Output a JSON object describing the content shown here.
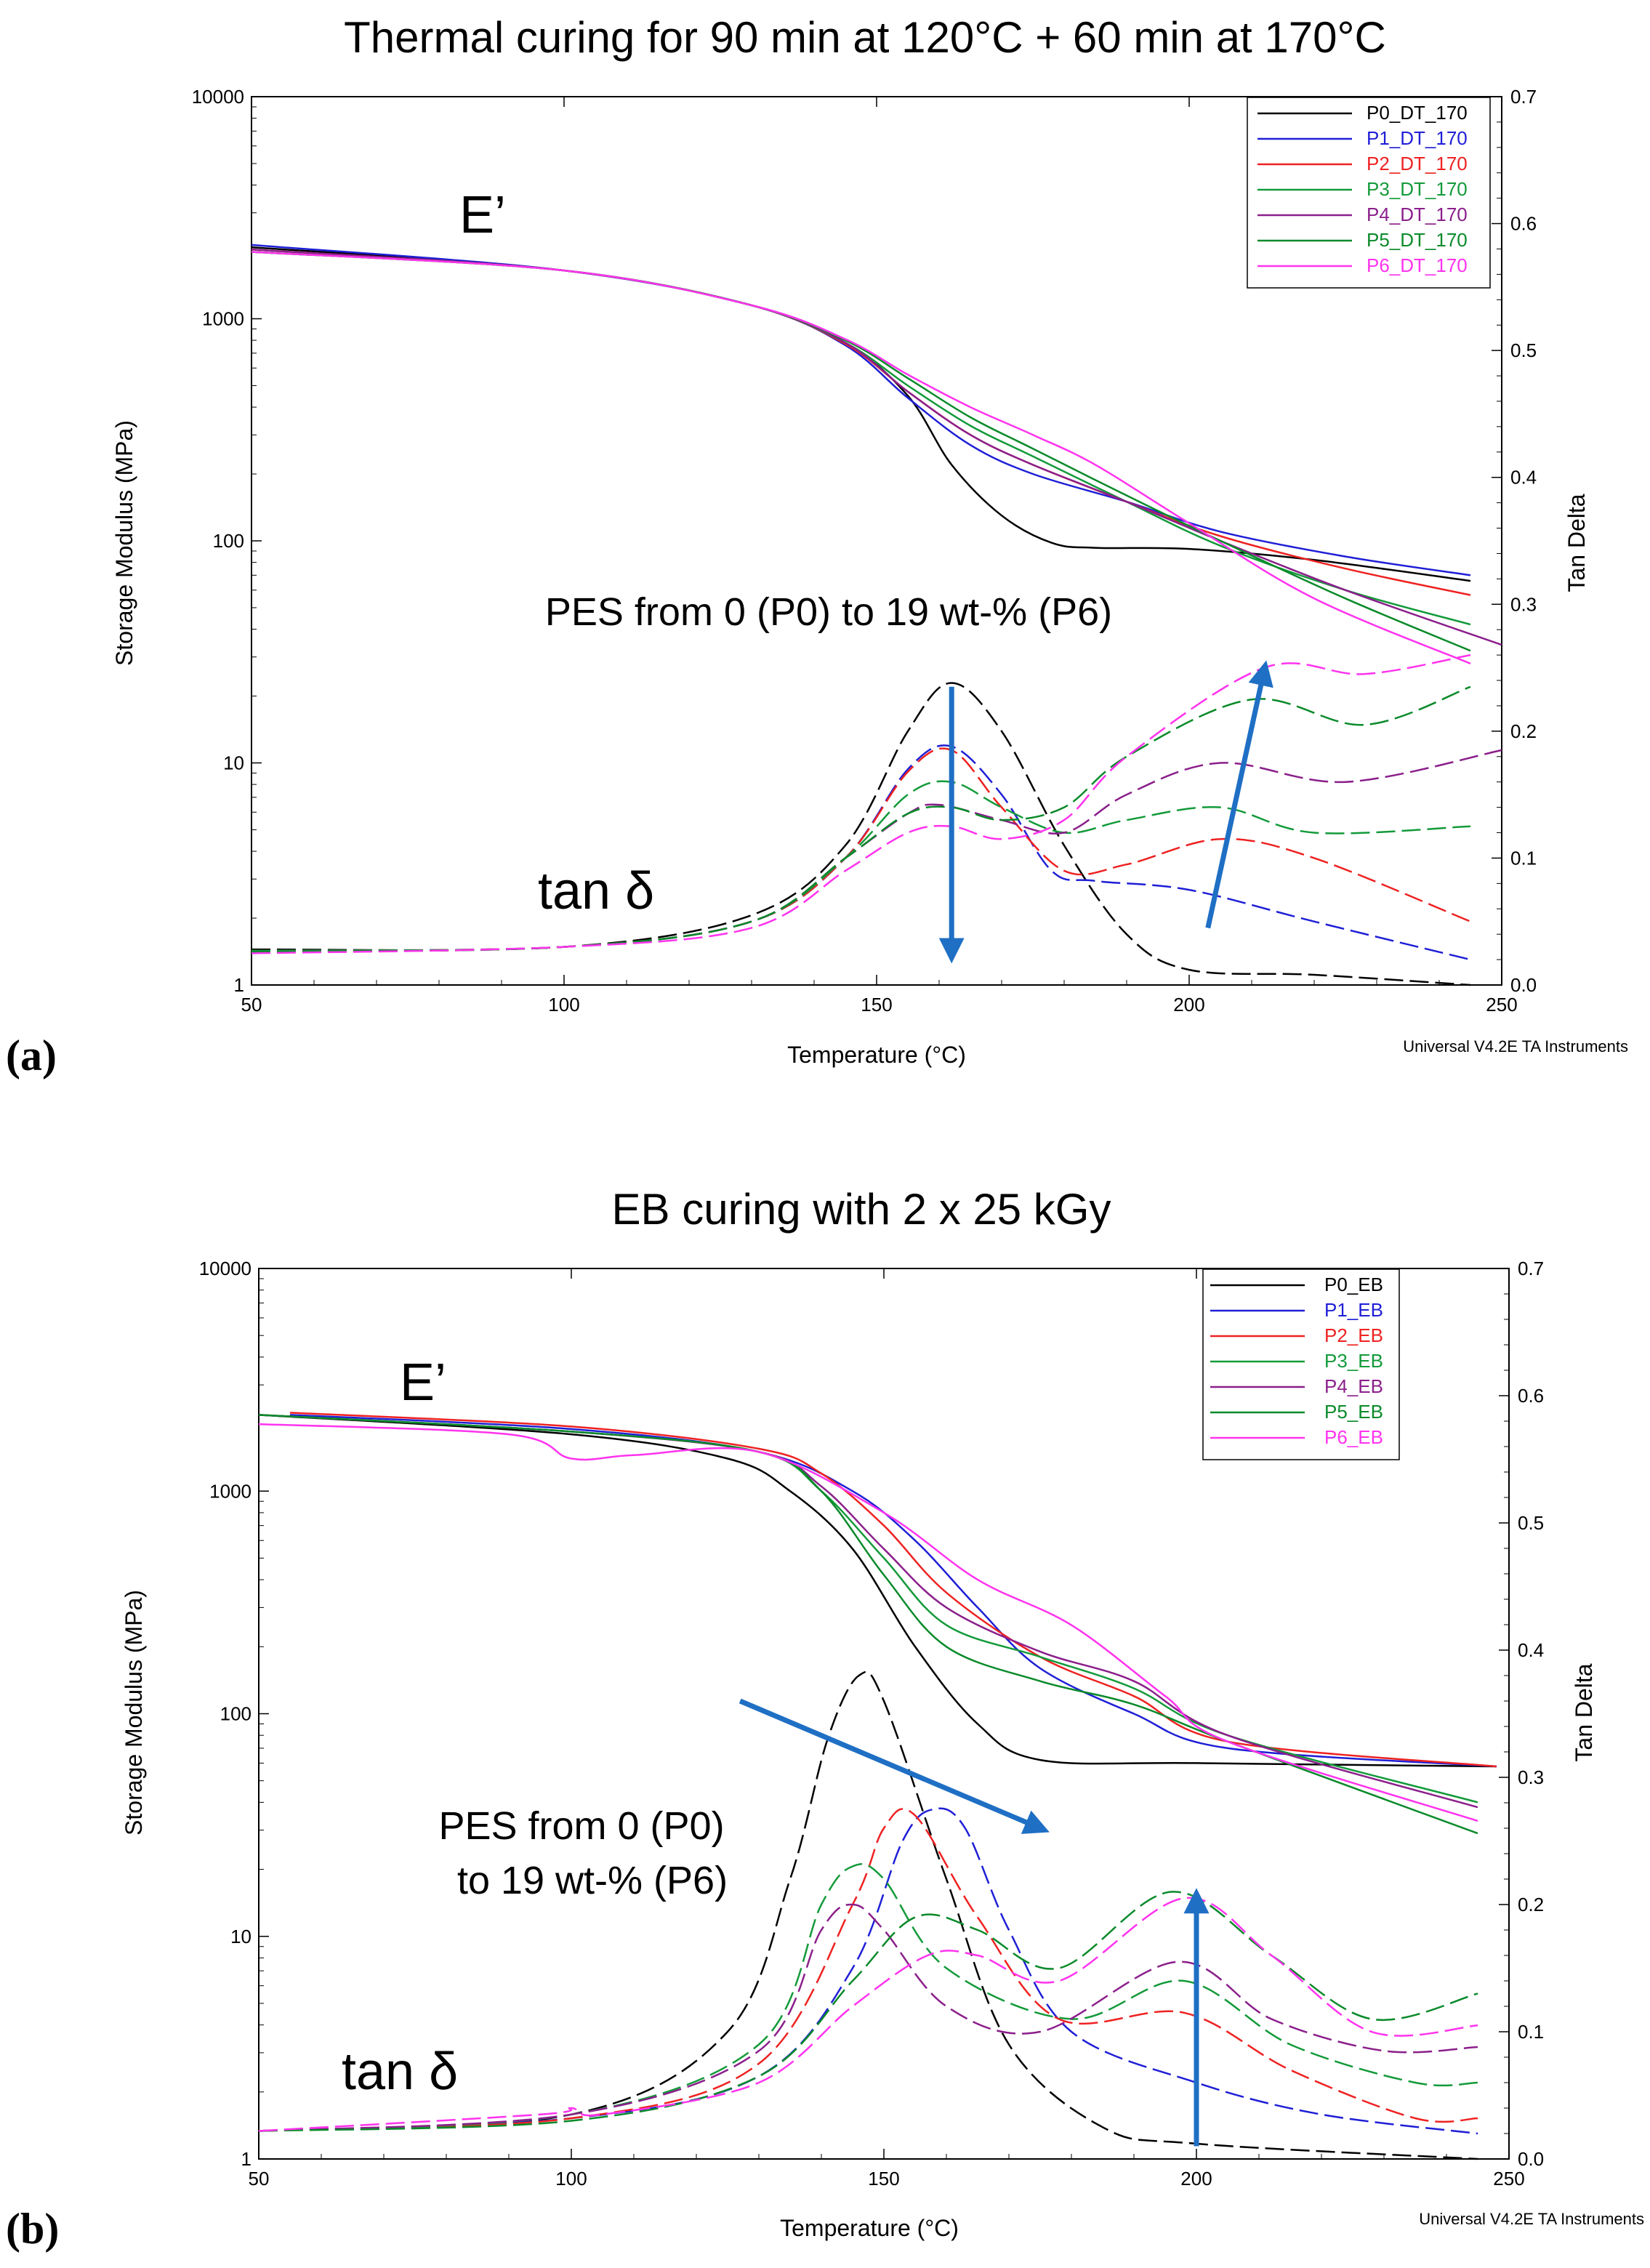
{
  "colors": {
    "P0": "#000000",
    "P1": "#1f1fd6",
    "P2": "#ee2222",
    "P3": "#139a3a",
    "P4": "#8b1f8b",
    "P5": "#0a8a2a",
    "P6": "#ff33ee",
    "arrow": "#1f6fc4"
  },
  "chart_data": [
    {
      "panel_label": "(a)",
      "type": "line",
      "title": "Thermal curing for 90 min at 120°C + 60 min at 170°C",
      "xlabel": "Temperature (°C)",
      "ylabel_left": "Storage Modulus (MPa)",
      "ylabel_right": "Tan Delta",
      "xlim": [
        50,
        250
      ],
      "ylim_left": [
        1,
        10000
      ],
      "ylim_right": [
        0,
        0.7
      ],
      "x_ticks": [
        "50",
        "100",
        "150",
        "200",
        "250"
      ],
      "y_left_ticks": [
        "1",
        "10",
        "100",
        "1000",
        "10000"
      ],
      "y_right_ticks": [
        "0.0",
        "0.1",
        "0.2",
        "0.3",
        "0.4",
        "0.5",
        "0.6",
        "0.7"
      ],
      "footer": "Universal V4.2E TA Instruments",
      "legend_position": "top-right",
      "curve_labels": {
        "modulus": "E’",
        "tan": "tan δ"
      },
      "annotation": [
        "PES from 0 (P0) to 19 wt-% (P6)"
      ],
      "modulus_series": [
        {
          "name": "P0_DT_170",
          "key": "P0",
          "x": [
            50,
            100,
            130,
            145,
            155,
            162,
            170,
            178,
            185,
            200,
            220,
            245
          ],
          "y": [
            2100,
            1650,
            1150,
            780,
            450,
            220,
            130,
            98,
            93,
            92,
            82,
            66
          ]
        },
        {
          "name": "P1_DT_170",
          "key": "P1",
          "x": [
            50,
            100,
            130,
            145,
            155,
            165,
            175,
            190,
            205,
            225,
            245
          ],
          "y": [
            2150,
            1650,
            1150,
            760,
            440,
            270,
            200,
            150,
            110,
            85,
            70
          ]
        },
        {
          "name": "P2_DT_170",
          "key": "P2",
          "x": [
            50,
            100,
            130,
            145,
            155,
            165,
            175,
            190,
            205,
            225,
            245
          ],
          "y": [
            2050,
            1650,
            1150,
            770,
            470,
            300,
            220,
            150,
            105,
            75,
            57
          ]
        },
        {
          "name": "P3_DT_170",
          "key": "P3",
          "x": [
            50,
            100,
            130,
            145,
            155,
            165,
            175,
            190,
            205,
            225,
            245
          ],
          "y": [
            2000,
            1650,
            1150,
            780,
            500,
            330,
            240,
            150,
            95,
            60,
            42
          ]
        },
        {
          "name": "P4_DT_170",
          "key": "P4",
          "x": [
            50,
            100,
            130,
            145,
            155,
            165,
            175,
            190,
            205,
            225,
            250
          ],
          "y": [
            2050,
            1650,
            1150,
            780,
            470,
            300,
            220,
            150,
            100,
            60,
            34
          ]
        },
        {
          "name": "P5_DT_170",
          "key": "P5",
          "x": [
            50,
            100,
            130,
            145,
            155,
            165,
            175,
            190,
            205,
            225,
            245
          ],
          "y": [
            2000,
            1650,
            1150,
            800,
            540,
            360,
            260,
            160,
            100,
            55,
            32
          ]
        },
        {
          "name": "P6_DT_170",
          "key": "P6",
          "x": [
            50,
            100,
            130,
            145,
            155,
            165,
            175,
            185,
            200,
            220,
            245
          ],
          "y": [
            2000,
            1650,
            1150,
            810,
            560,
            400,
            300,
            220,
            120,
            55,
            28
          ]
        }
      ],
      "tan_series": [
        {
          "name": "P0_DT_170",
          "key": "P0",
          "x": [
            50,
            100,
            130,
            145,
            155,
            162,
            170,
            180,
            190,
            200,
            220,
            245
          ],
          "y": [
            0.028,
            0.03,
            0.055,
            0.11,
            0.2,
            0.238,
            0.2,
            0.11,
            0.04,
            0.012,
            0.008,
            0.0
          ]
        },
        {
          "name": "P1_DT_170",
          "key": "P1",
          "x": [
            50,
            100,
            130,
            145,
            155,
            162,
            170,
            178,
            185,
            200,
            220,
            245
          ],
          "y": [
            0.027,
            0.03,
            0.05,
            0.1,
            0.17,
            0.188,
            0.15,
            0.09,
            0.082,
            0.075,
            0.05,
            0.02
          ]
        },
        {
          "name": "P2_DT_170",
          "key": "P2",
          "x": [
            50,
            100,
            130,
            145,
            155,
            162,
            170,
            180,
            190,
            205,
            220,
            245
          ],
          "y": [
            0.027,
            0.03,
            0.05,
            0.1,
            0.168,
            0.185,
            0.14,
            0.09,
            0.095,
            0.115,
            0.1,
            0.05
          ]
        },
        {
          "name": "P3_DT_170",
          "key": "P3",
          "x": [
            50,
            100,
            130,
            145,
            155,
            162,
            170,
            180,
            190,
            205,
            220,
            245
          ],
          "y": [
            0.027,
            0.03,
            0.05,
            0.1,
            0.15,
            0.16,
            0.14,
            0.12,
            0.13,
            0.14,
            0.12,
            0.125
          ]
        },
        {
          "name": "P4_DT_170",
          "key": "P4",
          "x": [
            50,
            100,
            130,
            145,
            155,
            160,
            170,
            180,
            190,
            205,
            225,
            250
          ],
          "y": [
            0.026,
            0.03,
            0.05,
            0.1,
            0.135,
            0.142,
            0.13,
            0.12,
            0.15,
            0.175,
            0.16,
            0.185
          ]
        },
        {
          "name": "P5_DT_170",
          "key": "P5",
          "x": [
            50,
            100,
            130,
            145,
            155,
            162,
            170,
            180,
            190,
            210,
            228,
            245
          ],
          "y": [
            0.026,
            0.03,
            0.05,
            0.1,
            0.135,
            0.14,
            0.13,
            0.14,
            0.18,
            0.225,
            0.205,
            0.235
          ]
        },
        {
          "name": "P6_DT_170",
          "key": "P6",
          "x": [
            50,
            100,
            130,
            145,
            155,
            162,
            170,
            180,
            190,
            212,
            228,
            245
          ],
          "y": [
            0.025,
            0.03,
            0.045,
            0.09,
            0.12,
            0.125,
            0.115,
            0.13,
            0.18,
            0.25,
            0.245,
            0.26
          ]
        }
      ],
      "arrows": [
        {
          "x1": 162,
          "y1": 0.235,
          "x2": 162,
          "y2": 0.025
        },
        {
          "x1": 203,
          "y1": 0.045,
          "x2": 212,
          "y2": 0.248
        }
      ]
    },
    {
      "panel_label": "(b)",
      "type": "line",
      "title": "EB curing with 2 x 25  kGy",
      "xlabel": "Temperature (°C)",
      "ylabel_left": "Storage Modulus (MPa)",
      "ylabel_right": "Tan Delta",
      "xlim": [
        50,
        250
      ],
      "ylim_left": [
        1,
        10000
      ],
      "ylim_right": [
        0,
        0.7
      ],
      "x_ticks": [
        "50",
        "100",
        "150",
        "200",
        "250"
      ],
      "y_left_ticks": [
        "1",
        "10",
        "100",
        "1000",
        "10000"
      ],
      "y_right_ticks": [
        "0.0",
        "0.1",
        "0.2",
        "0.3",
        "0.4",
        "0.5",
        "0.6",
        "0.7"
      ],
      "footer": "Universal V4.2E TA Instruments",
      "legend_position": "top-right",
      "curve_labels": {
        "modulus": "E’",
        "tan": "tan δ"
      },
      "annotation": [
        "PES from 0 (P0)",
        "to 19 wt-% (P6)"
      ],
      "modulus_series": [
        {
          "name": "P0_EB",
          "key": "P0",
          "x": [
            50,
            100,
            125,
            135,
            145,
            155,
            165,
            175,
            200,
            248
          ],
          "y": [
            2200,
            1800,
            1400,
            1000,
            550,
            200,
            90,
            62,
            60,
            58
          ]
        },
        {
          "name": "P1_EB",
          "key": "P1",
          "x": [
            55,
            100,
            130,
            145,
            155,
            165,
            175,
            190,
            205,
            248
          ],
          "y": [
            2200,
            1900,
            1500,
            1000,
            600,
            300,
            160,
            100,
            70,
            58
          ]
        },
        {
          "name": "P2_EB",
          "key": "P2",
          "x": [
            55,
            100,
            130,
            140,
            150,
            160,
            175,
            190,
            205,
            248
          ],
          "y": [
            2250,
            1950,
            1550,
            1200,
            700,
            350,
            180,
            120,
            75,
            58
          ]
        },
        {
          "name": "P3_EB",
          "key": "P3",
          "x": [
            50,
            100,
            130,
            140,
            150,
            160,
            175,
            190,
            205,
            245
          ],
          "y": [
            2200,
            1850,
            1500,
            1000,
            500,
            250,
            180,
            130,
            80,
            40
          ]
        },
        {
          "name": "P4_EB",
          "key": "P4",
          "x": [
            50,
            100,
            130,
            140,
            150,
            160,
            175,
            190,
            205,
            245
          ],
          "y": [
            2200,
            1850,
            1500,
            1050,
            550,
            300,
            190,
            140,
            80,
            38
          ]
        },
        {
          "name": "P5_EB",
          "key": "P5",
          "x": [
            50,
            100,
            130,
            140,
            150,
            160,
            175,
            190,
            205,
            245
          ],
          "y": [
            2200,
            1850,
            1500,
            1000,
            420,
            200,
            140,
            110,
            75,
            29
          ]
        },
        {
          "name": "P6_EB",
          "key": "P6",
          "x": [
            50,
            90,
            100,
            110,
            130,
            150,
            165,
            180,
            195,
            205,
            245
          ],
          "y": [
            2000,
            1800,
            1400,
            1450,
            1500,
            800,
            400,
            250,
            120,
            75,
            33
          ]
        }
      ],
      "tan_series": [
        {
          "name": "P0_EB",
          "key": "P0",
          "x": [
            50,
            100,
            125,
            135,
            141,
            146,
            150,
            160,
            170,
            185,
            200,
            245
          ],
          "y": [
            0.022,
            0.035,
            0.1,
            0.22,
            0.33,
            0.38,
            0.36,
            0.22,
            0.09,
            0.025,
            0.012,
            0.0
          ]
        },
        {
          "name": "P1_EB",
          "key": "P1",
          "x": [
            50,
            100,
            130,
            145,
            153,
            158,
            163,
            170,
            180,
            200,
            220,
            245
          ],
          "y": [
            0.022,
            0.032,
            0.065,
            0.15,
            0.25,
            0.275,
            0.26,
            0.18,
            0.1,
            0.06,
            0.035,
            0.02
          ]
        },
        {
          "name": "P2_EB",
          "key": "P2",
          "x": [
            50,
            100,
            130,
            145,
            150,
            155,
            165,
            178,
            198,
            215,
            235,
            245
          ],
          "y": [
            0.022,
            0.032,
            0.075,
            0.2,
            0.26,
            0.27,
            0.19,
            0.11,
            0.115,
            0.07,
            0.032,
            0.032
          ]
        },
        {
          "name": "P3_EB",
          "key": "P3",
          "x": [
            50,
            100,
            130,
            140,
            145,
            150,
            160,
            180,
            198,
            215,
            235,
            245
          ],
          "y": [
            0.022,
            0.035,
            0.09,
            0.2,
            0.23,
            0.22,
            0.15,
            0.11,
            0.14,
            0.09,
            0.06,
            0.06
          ]
        },
        {
          "name": "P4_EB",
          "key": "P4",
          "x": [
            50,
            100,
            130,
            140,
            145,
            150,
            160,
            175,
            197,
            212,
            230,
            245
          ],
          "y": [
            0.022,
            0.035,
            0.085,
            0.18,
            0.2,
            0.18,
            0.12,
            0.1,
            0.155,
            0.11,
            0.085,
            0.088
          ]
        },
        {
          "name": "P5_EB",
          "key": "P5",
          "x": [
            50,
            100,
            130,
            145,
            155,
            165,
            178,
            196,
            212,
            228,
            245
          ],
          "y": [
            0.022,
            0.03,
            0.065,
            0.14,
            0.19,
            0.18,
            0.15,
            0.21,
            0.16,
            0.11,
            0.13
          ]
        },
        {
          "name": "P6_EB",
          "key": "P6",
          "x": [
            50,
            95,
            100,
            105,
            130,
            145,
            157,
            165,
            178,
            198,
            212,
            228,
            245
          ],
          "y": [
            0.022,
            0.035,
            0.04,
            0.035,
            0.06,
            0.12,
            0.16,
            0.16,
            0.14,
            0.205,
            0.16,
            0.1,
            0.105
          ]
        }
      ],
      "arrows": [
        {
          "x1": 127,
          "y1": 0.36,
          "x2": 175,
          "y2": 0.26
        },
        {
          "x1": 200,
          "y1": 0.01,
          "x2": 200,
          "y2": 0.205
        }
      ]
    }
  ]
}
